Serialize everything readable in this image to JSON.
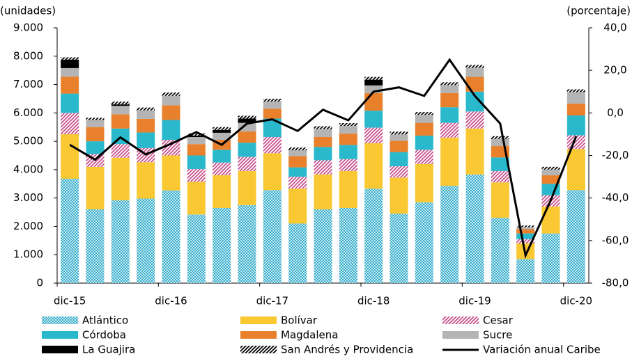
{
  "chart_data": {
    "type": "bar",
    "stacked": true,
    "y_label": "(unidades)",
    "y2_label": "(porcentaje)",
    "categories": [
      "dic-15",
      null,
      null,
      null,
      "dic-16",
      null,
      null,
      null,
      "dic-17",
      null,
      null,
      null,
      "dic-18",
      null,
      null,
      null,
      "dic-19",
      null,
      null,
      null,
      "dic-20"
    ],
    "ylim": [
      0,
      9000
    ],
    "yticks": [
      0,
      {
        "value": 1000,
        "label": "1.000"
      },
      {
        "value": 2000,
        "label": "2.000"
      },
      {
        "value": 3000,
        "label": "3.000"
      },
      {
        "value": 4000,
        "label": "4.000"
      },
      {
        "value": 5000,
        "label": "5.000"
      },
      {
        "value": 6000,
        "label": "6.000"
      },
      {
        "value": 7000,
        "label": "7.000"
      },
      {
        "value": 8000,
        "label": "8.000"
      },
      {
        "value": 9000,
        "label": "9.000"
      }
    ],
    "y2lim": [
      -80,
      40
    ],
    "y2ticks": [
      {
        "value": -80,
        "label": "-80,0"
      },
      {
        "value": -60,
        "label": "-60,0"
      },
      {
        "value": -40,
        "label": "-40,0"
      },
      {
        "value": -20,
        "label": "-20,0"
      },
      {
        "value": 0,
        "label": "0,0"
      },
      {
        "value": 20,
        "label": "20,0"
      },
      {
        "value": 40,
        "label": "40,0"
      }
    ],
    "series": [
      {
        "name": "Atlántico",
        "color": "#1ea4c4",
        "pattern": "crosshatch",
        "values": [
          3680,
          2600,
          2920,
          2980,
          3270,
          2420,
          2650,
          2750,
          3280,
          2100,
          2600,
          2650,
          3330,
          2450,
          2850,
          3430,
          3830,
          2300,
          850,
          1750,
          3280
        ]
      },
      {
        "name": "Bolívar",
        "color": "#fac832",
        "values": [
          1570,
          1500,
          1500,
          1280,
          1230,
          1150,
          1150,
          1200,
          1300,
          1230,
          1230,
          1300,
          1600,
          1270,
          1350,
          1700,
          1620,
          1250,
          550,
          950,
          1450
        ]
      },
      {
        "name": "Cesar",
        "color": "#c8508c",
        "pattern": "diagonal",
        "values": [
          750,
          450,
          480,
          500,
          550,
          450,
          450,
          500,
          570,
          420,
          500,
          420,
          550,
          400,
          500,
          520,
          600,
          400,
          150,
          400,
          480
        ]
      },
      {
        "name": "Córdoba",
        "color": "#2ab9cc",
        "values": [
          680,
          450,
          550,
          550,
          700,
          480,
          450,
          500,
          650,
          330,
          470,
          500,
          600,
          500,
          500,
          550,
          700,
          480,
          200,
          400,
          700
        ]
      },
      {
        "name": "Magdalena",
        "color": "#e8802c",
        "values": [
          600,
          500,
          500,
          480,
          520,
          400,
          350,
          400,
          350,
          400,
          350,
          400,
          620,
          400,
          450,
          500,
          520,
          400,
          150,
          300,
          420
        ]
      },
      {
        "name": "Sucre",
        "color": "#b4b4b4",
        "values": [
          300,
          250,
          300,
          300,
          330,
          250,
          250,
          300,
          250,
          200,
          280,
          270,
          270,
          220,
          280,
          280,
          320,
          250,
          70,
          200,
          400
        ]
      },
      {
        "name": "La Guajira",
        "color": "#000000",
        "values": [
          300,
          0,
          50,
          0,
          0,
          50,
          100,
          150,
          0,
          0,
          0,
          0,
          200,
          0,
          0,
          0,
          0,
          0,
          0,
          0,
          0
        ]
      },
      {
        "name": "San Andrés y Providencia",
        "color": "#000000",
        "pattern": "diagonal",
        "values": [
          80,
          80,
          100,
          100,
          120,
          80,
          100,
          100,
          100,
          100,
          100,
          100,
          100,
          100,
          100,
          100,
          100,
          100,
          60,
          100,
          100
        ]
      },
      {
        "name": "Variación anual Caribe",
        "color": "#000000",
        "type": "line",
        "axis": "y2",
        "values": [
          -15,
          -22,
          -11.5,
          -19.5,
          -14.5,
          -9,
          -15,
          -5,
          -3,
          -8.5,
          1.5,
          -3.5,
          10,
          12,
          8,
          25,
          8,
          -5,
          -67,
          -41,
          -11
        ]
      }
    ]
  }
}
